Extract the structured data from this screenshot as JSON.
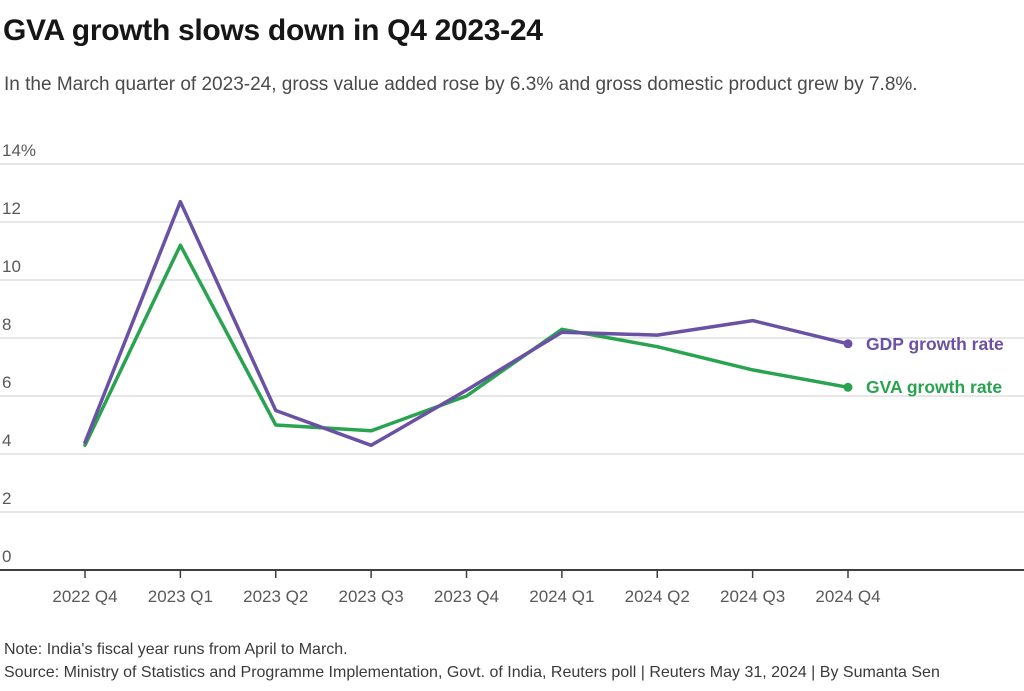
{
  "chart_data": {
    "type": "line",
    "title": "GVA growth slows down in Q4 2023-24",
    "subtitle": "In the March quarter of 2023-24, gross value added rose by 6.3% and gross domestic product grew by 7.8%.",
    "xlabel": "",
    "ylabel": "",
    "ylim": [
      0,
      14
    ],
    "grid": true,
    "legend_position": "right-of-line-ends",
    "categories": [
      "2022 Q4",
      "2023 Q1",
      "2023 Q2",
      "2023 Q3",
      "2023 Q4",
      "2024 Q1",
      "2024 Q2",
      "2024 Q3",
      "2024 Q4"
    ],
    "yticks": [
      {
        "value": 14,
        "label": "14%"
      },
      {
        "value": 12,
        "label": "12"
      },
      {
        "value": 10,
        "label": "10"
      },
      {
        "value": 8,
        "label": "8"
      },
      {
        "value": 6,
        "label": "6"
      },
      {
        "value": 4,
        "label": "4"
      },
      {
        "value": 2,
        "label": "2"
      },
      {
        "value": 0,
        "label": "0"
      }
    ],
    "series": [
      {
        "name": "GDP growth rate",
        "key": "gdp",
        "color": "#6a51a3",
        "values": [
          4.4,
          12.7,
          5.5,
          4.3,
          6.2,
          8.2,
          8.1,
          8.6,
          7.8
        ]
      },
      {
        "name": "GVA growth rate",
        "key": "gva",
        "color": "#2aa351",
        "values": [
          4.3,
          11.2,
          5.0,
          4.8,
          6.0,
          8.3,
          7.7,
          6.9,
          6.3
        ]
      }
    ]
  },
  "footer": {
    "note": "Note: India's fiscal year runs from April to March.",
    "source": "Source: Ministry of Statistics and Programme Implementation, Govt. of India, Reuters poll | Reuters May 31, 2024 | By Sumanta Sen"
  }
}
